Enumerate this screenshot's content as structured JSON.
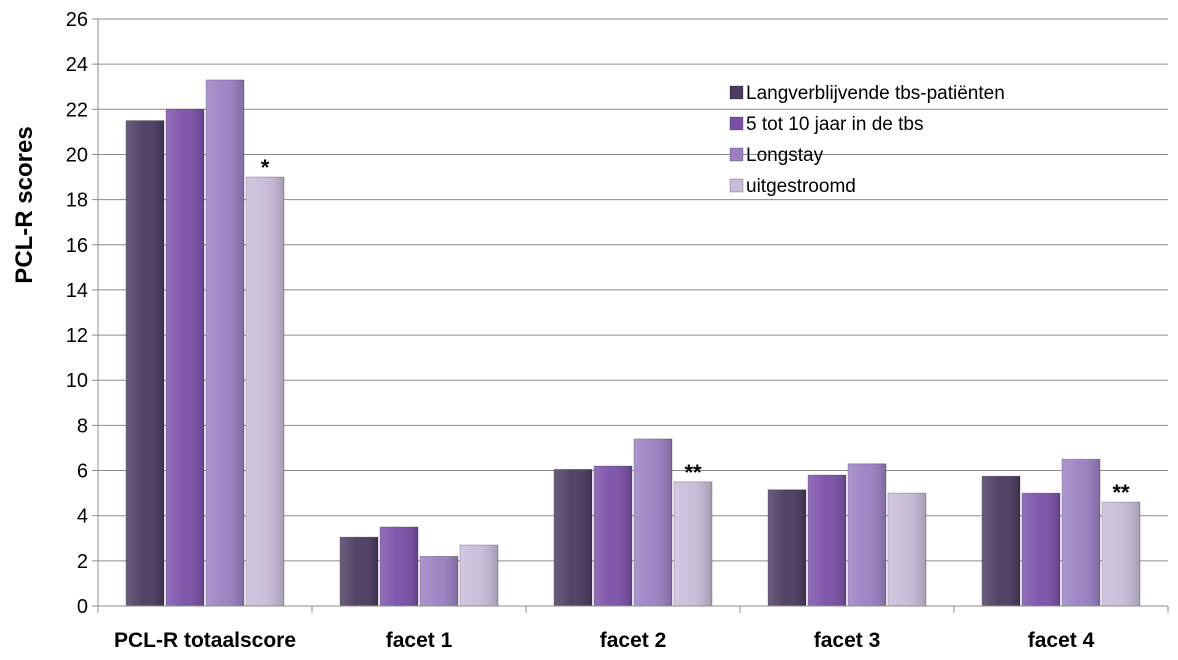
{
  "chart_data": {
    "type": "bar",
    "title": "",
    "xlabel": "",
    "ylabel": "PCL-R scores",
    "ylim": [
      0,
      26
    ],
    "ytick_step": 2,
    "grid": true,
    "legend_position": "top-right",
    "categories": [
      "PCL-R totaalscore",
      "facet 1",
      "facet 2",
      "facet 3",
      "facet 4"
    ],
    "series": [
      {
        "name": "Langverblijvende tbs-patiënten",
        "color": "#4a3a5e",
        "values": [
          21.5,
          3.05,
          6.05,
          5.15,
          5.75
        ]
      },
      {
        "name": "5 tot 10 jaar in de tbs",
        "color": "#7a4fa8",
        "values": [
          22.0,
          3.5,
          6.2,
          5.8,
          5.0
        ]
      },
      {
        "name": "Longstay",
        "color": "#9a80c2",
        "values": [
          23.3,
          2.2,
          7.4,
          6.3,
          6.5
        ]
      },
      {
        "name": "uitgestroomd",
        "color": "#c8bcd8",
        "values": [
          19.0,
          2.7,
          5.5,
          5.0,
          4.6
        ]
      }
    ],
    "annotations": [
      {
        "category": "PCL-R totaalscore",
        "series": "uitgestroomd",
        "text": "*"
      },
      {
        "category": "facet 2",
        "series": "uitgestroomd",
        "text": "**"
      },
      {
        "category": "facet 4",
        "series": "uitgestroomd",
        "text": "**"
      }
    ]
  }
}
